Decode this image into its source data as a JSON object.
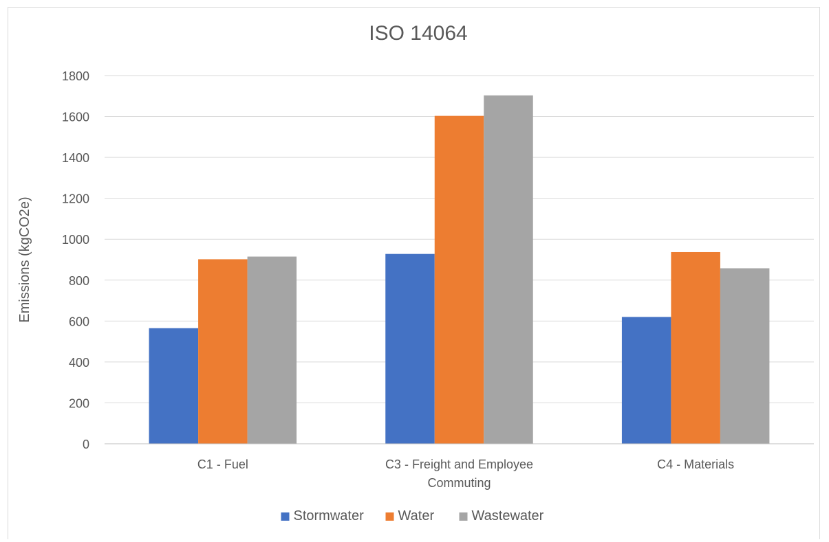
{
  "chart_data": {
    "type": "bar",
    "title": "ISO 14064",
    "xlabel": "",
    "ylabel": "Emissions (kgCO2e)",
    "ylim": [
      0,
      1800
    ],
    "yticks": [
      0,
      200,
      400,
      600,
      800,
      1000,
      1200,
      1400,
      1600,
      1800
    ],
    "grid": true,
    "legend_position": "bottom",
    "categories": [
      [
        "C1 - Fuel"
      ],
      [
        "C3 - Freight and Employee",
        "Commuting"
      ],
      [
        "C4 - Materials"
      ]
    ],
    "series": [
      {
        "name": "Stormwater",
        "color": "#4472C4",
        "values": [
          565,
          928,
          620
        ]
      },
      {
        "name": "Water",
        "color": "#ED7D31",
        "values": [
          902,
          1603,
          937
        ]
      },
      {
        "name": "Wastewater",
        "color": "#A5A5A5",
        "values": [
          915,
          1703,
          858
        ]
      }
    ]
  }
}
